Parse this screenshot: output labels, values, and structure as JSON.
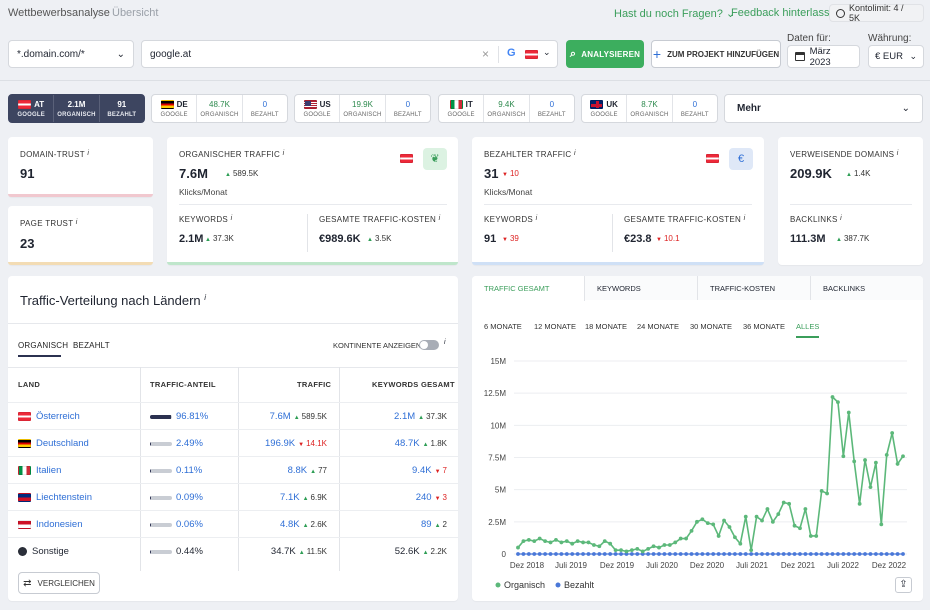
{
  "breadcrumb": {
    "parent": "Wettbewerbsanalyse",
    "current": "Übersicht"
  },
  "topbar": {
    "help": "Hast du noch Fragen?",
    "feedback": "Feedback hinterlassen",
    "kontolimit": "Kontolimit: 4 / 5K"
  },
  "search": {
    "mode": "*.domain.com/*",
    "query": "google.at",
    "analyze": "ANALYSIEREN",
    "add_project": "ZUM PROJEKT HINZUFÜGEN",
    "data_label": "Daten für:",
    "date": "März 2023",
    "currency_label": "Währung:",
    "currency": "€ EUR"
  },
  "countries": [
    {
      "code": "AT",
      "organic": "2.1M",
      "paid": "91",
      "google": "GOOGLE",
      "organic_label": "ORGANISCH",
      "paid_label": "BEZAHLT",
      "flag": "at",
      "active": true
    },
    {
      "code": "DE",
      "organic": "48.7K",
      "paid": "0",
      "google": "GOOGLE",
      "organic_label": "ORGANISCH",
      "paid_label": "BEZAHLT",
      "flag": "de"
    },
    {
      "code": "US",
      "organic": "19.9K",
      "paid": "0",
      "google": "GOOGLE",
      "organic_label": "ORGANISCH",
      "paid_label": "BEZAHLT",
      "flag": "us"
    },
    {
      "code": "IT",
      "organic": "9.4K",
      "paid": "0",
      "google": "GOOGLE",
      "organic_label": "ORGANISCH",
      "paid_label": "BEZAHLT",
      "flag": "it"
    },
    {
      "code": "UK",
      "organic": "8.7K",
      "paid": "0",
      "google": "GOOGLE",
      "organic_label": "ORGANISCH",
      "paid_label": "BEZAHLT",
      "flag": "uk"
    }
  ],
  "more": "Mehr",
  "domain_trust": {
    "label": "DOMAIN-TRUST",
    "value": "91",
    "color": "#f1c8cf"
  },
  "page_trust": {
    "label": "PAGE TRUST",
    "value": "23",
    "color": "#f3dcb4"
  },
  "organic": {
    "label": "ORGANISCHER TRAFFIC",
    "value": "7.6M",
    "delta": "589.5K",
    "unit": "Klicks/Monat",
    "keywords_label": "KEYWORDS",
    "keywords": "2.1M",
    "keywords_delta": "37.3K",
    "cost_label": "GESAMTE TRAFFIC-KOSTEN",
    "cost": "€989.6K",
    "cost_delta": "3.5K",
    "color": "#bfe6cb"
  },
  "paid": {
    "label": "BEZAHLTER TRAFFIC",
    "value": "31",
    "delta": "10",
    "unit": "Klicks/Monat",
    "keywords_label": "KEYWORDS",
    "keywords": "91",
    "keywords_delta": "39",
    "cost_label": "GESAMTE TRAFFIC-KOSTEN",
    "cost": "€23.8",
    "cost_delta": "10.1",
    "icon_text": "€",
    "color": "#cfe0f6"
  },
  "referring": {
    "label": "VERWEISENDE DOMAINS",
    "value": "209.9K",
    "delta": "1.4K",
    "backlinks_label": "BACKLINKS",
    "backlinks": "111.3M",
    "backlinks_delta": "387.7K"
  },
  "distribution": {
    "title": "Traffic-Verteilung nach Ländern",
    "tab_organic": "ORGANISCH",
    "tab_paid": "BEZAHLT",
    "continents": "KONTINENTE ANZEIGEN",
    "headers": {
      "land": "LAND",
      "share": "TRAFFIC-ANTEIL",
      "traffic": "TRAFFIC",
      "keywords": "KEYWORDS GESAMT"
    },
    "rows": [
      {
        "flag": "at",
        "country": "Österreich",
        "share": "96.81%",
        "share_value": 96.81,
        "traffic": "7.6M",
        "traffic_delta": "589.5K",
        "traffic_dir": "up",
        "keywords": "2.1M",
        "kw_delta": "37.3K",
        "kw_dir": "up",
        "link": true
      },
      {
        "flag": "de",
        "country": "Deutschland",
        "share": "2.49%",
        "share_value": 2.49,
        "traffic": "196.9K",
        "traffic_delta": "14.1K",
        "traffic_dir": "down",
        "keywords": "48.7K",
        "kw_delta": "1.8K",
        "kw_dir": "up",
        "link": true
      },
      {
        "flag": "it",
        "country": "Italien",
        "share": "0.11%",
        "share_value": 0.11,
        "traffic": "8.8K",
        "traffic_delta": "77",
        "traffic_dir": "up",
        "keywords": "9.4K",
        "kw_delta": "7",
        "kw_dir": "down",
        "link": true
      },
      {
        "flag": "li",
        "country": "Liechtenstein",
        "share": "0.09%",
        "share_value": 0.09,
        "traffic": "7.1K",
        "traffic_delta": "6.9K",
        "traffic_dir": "up",
        "keywords": "240",
        "kw_delta": "3",
        "kw_dir": "down",
        "link": true
      },
      {
        "flag": "id",
        "country": "Indonesien",
        "share": "0.06%",
        "share_value": 0.06,
        "traffic": "4.8K",
        "traffic_delta": "2.6K",
        "traffic_dir": "up",
        "keywords": "89",
        "kw_delta": "2",
        "kw_dir": "up",
        "link": true
      },
      {
        "flag": "other",
        "country": "Sonstige",
        "share": "0.44%",
        "share_value": 0.44,
        "traffic": "34.7K",
        "traffic_delta": "11.5K",
        "traffic_dir": "up",
        "keywords": "52.6K",
        "kw_delta": "2.2K",
        "kw_dir": "up",
        "link": false
      }
    ],
    "compare": "VERGLEICHEN"
  },
  "chart_panel": {
    "tabs": [
      "TRAFFIC GESAMT",
      "KEYWORDS",
      "TRAFFIC-KOSTEN",
      "BACKLINKS"
    ],
    "ranges": [
      "6 MONATE",
      "12 MONATE",
      "18 MONATE",
      "24 MONATE",
      "30 MONATE",
      "36 MONATE",
      "ALLES"
    ]
  },
  "chart_data": {
    "type": "line",
    "yticks": [
      "15M",
      "12.5M",
      "10M",
      "7.5M",
      "5M",
      "2.5M",
      "0"
    ],
    "ylim": [
      0,
      15000000
    ],
    "xticks": [
      "Dez 2018",
      "Juli 2019",
      "Dez 2019",
      "Juli 2020",
      "Dez 2020",
      "Juli 2021",
      "Dez 2021",
      "Juli 2022",
      "Dez 2022"
    ],
    "series": [
      {
        "name": "Organisch",
        "color": "#5cb87a",
        "values": [
          0.5,
          1.0,
          1.1,
          1.0,
          1.2,
          1.0,
          0.9,
          1.1,
          0.9,
          1.0,
          0.8,
          1.0,
          0.9,
          0.9,
          0.7,
          0.6,
          1.0,
          0.8,
          0.3,
          0.3,
          0.2,
          0.3,
          0.4,
          0.2,
          0.4,
          0.6,
          0.5,
          0.7,
          0.7,
          0.9,
          1.2,
          1.2,
          1.8,
          2.5,
          2.7,
          2.4,
          2.3,
          1.4,
          2.6,
          2.1,
          1.3,
          0.8,
          2.9,
          0.3,
          2.9,
          2.6,
          3.5,
          2.5,
          3.1,
          4.0,
          3.9,
          2.2,
          2.0,
          3.5,
          1.4,
          1.4,
          4.9,
          4.7,
          12.2,
          11.8,
          7.6,
          11.0,
          7.2,
          3.9,
          7.3,
          5.2,
          7.1,
          2.3,
          7.7,
          9.4,
          7.0,
          7.6
        ]
      },
      {
        "name": "Bezahlt",
        "color": "#4a78d8",
        "values": [
          0,
          0,
          0,
          0,
          0,
          0,
          0,
          0,
          0,
          0,
          0,
          0,
          0,
          0,
          0,
          0,
          0,
          0,
          0,
          0,
          0,
          0,
          0,
          0,
          0,
          0,
          0,
          0,
          0,
          0,
          0,
          0,
          0,
          0,
          0,
          0,
          0,
          0,
          0,
          0,
          0,
          0,
          0,
          0,
          0,
          0,
          0,
          0,
          0,
          0,
          0,
          0,
          0,
          0,
          0,
          0,
          0,
          0,
          0,
          0,
          0,
          0,
          0,
          0,
          0,
          0,
          0,
          0,
          0,
          0,
          0,
          0
        ]
      }
    ]
  }
}
